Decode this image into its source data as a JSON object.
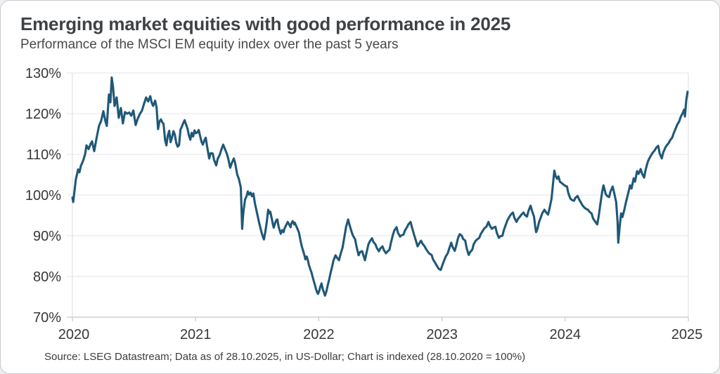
{
  "header": {
    "title": "Emerging market equities with good performance in 2025",
    "subtitle": "Performance of the MSCI EM equity index over the past 5 years"
  },
  "footer": {
    "source": "Source: LSEG Datastream; Data as of 28.10.2025, in US-Dollar; Chart is indexed (28.10.2020 = 100%)"
  },
  "chart_data": {
    "type": "line",
    "title": "Emerging market equities with good performance in 2025",
    "subtitle": "Performance of the MSCI EM equity index over the past 5 years",
    "series_name": "MSCI EM equity index (indexed, 28.10.2020 = 100%)",
    "unit": "%",
    "grid": "horizontal",
    "legend": "none",
    "line_color": "#1f5878",
    "xlim_years": [
      0,
      5
    ],
    "ylim": [
      70,
      130
    ],
    "x_ticks": [
      "2020",
      "2021",
      "2022",
      "2023",
      "2024",
      "2025"
    ],
    "y_tick_values": [
      130,
      120,
      110,
      100,
      90,
      80,
      70
    ],
    "y_tick_labels": [
      "130%",
      "120%",
      "110%",
      "100%",
      "90%",
      "80%",
      "70%"
    ],
    "points": [
      [
        0,
        99.4
      ],
      [
        0.006,
        98.3
      ],
      [
        0.028,
        103.9
      ],
      [
        0.046,
        106.3
      ],
      [
        0.057,
        105.6
      ],
      [
        0.068,
        107.1
      ],
      [
        0.085,
        108.3
      ],
      [
        0.103,
        110
      ],
      [
        0.114,
        112.2
      ],
      [
        0.131,
        111.3
      ],
      [
        0.148,
        112.6
      ],
      [
        0.159,
        113.2
      ],
      [
        0.177,
        110.8
      ],
      [
        0.194,
        113.7
      ],
      [
        0.216,
        117
      ],
      [
        0.233,
        118.2
      ],
      [
        0.251,
        120.6
      ],
      [
        0.268,
        118.1
      ],
      [
        0.279,
        117
      ],
      [
        0.296,
        124.7
      ],
      [
        0.308,
        122.8
      ],
      [
        0.319,
        128.9
      ],
      [
        0.33,
        126.5
      ],
      [
        0.342,
        121.9
      ],
      [
        0.359,
        124
      ],
      [
        0.376,
        119
      ],
      [
        0.393,
        121.4
      ],
      [
        0.41,
        117.6
      ],
      [
        0.427,
        120.4
      ],
      [
        0.444,
        120
      ],
      [
        0.461,
        120.3
      ],
      [
        0.478,
        119.5
      ],
      [
        0.495,
        120.8
      ],
      [
        0.513,
        117.2
      ],
      [
        0.53,
        118.8
      ],
      [
        0.547,
        119.9
      ],
      [
        0.564,
        120.7
      ],
      [
        0.581,
        122.4
      ],
      [
        0.598,
        124
      ],
      [
        0.615,
        123
      ],
      [
        0.632,
        124.3
      ],
      [
        0.644,
        122.7
      ],
      [
        0.655,
        121.9
      ],
      [
        0.672,
        123.2
      ],
      [
        0.683,
        121.5
      ],
      [
        0.695,
        116.2
      ],
      [
        0.706,
        118
      ],
      [
        0.718,
        118.6
      ],
      [
        0.729,
        117.9
      ],
      [
        0.74,
        117.5
      ],
      [
        0.752,
        113.5
      ],
      [
        0.763,
        112.2
      ],
      [
        0.774,
        114.6
      ],
      [
        0.786,
        115.8
      ],
      [
        0.797,
        113
      ],
      [
        0.809,
        114.2
      ],
      [
        0.82,
        115.7
      ],
      [
        0.831,
        114.9
      ],
      [
        0.843,
        112.8
      ],
      [
        0.854,
        111.9
      ],
      [
        0.866,
        112.3
      ],
      [
        0.877,
        116.1
      ],
      [
        0.888,
        116.8
      ],
      [
        0.9,
        117.7
      ],
      [
        0.911,
        118.4
      ],
      [
        0.923,
        117.3
      ],
      [
        0.934,
        116.4
      ],
      [
        0.945,
        114.7
      ],
      [
        0.957,
        113.6
      ],
      [
        0.968,
        115.3
      ],
      [
        0.98,
        114.4
      ],
      [
        0.991,
        115.9
      ],
      [
        1.002,
        115.2
      ],
      [
        1.014,
        115.4
      ],
      [
        1.025,
        116
      ],
      [
        1.036,
        114.6
      ],
      [
        1.048,
        113.1
      ],
      [
        1.059,
        112.4
      ],
      [
        1.071,
        113.4
      ],
      [
        1.082,
        114.1
      ],
      [
        1.093,
        112
      ],
      [
        1.11,
        109
      ],
      [
        1.122,
        110.3
      ],
      [
        1.139,
        110.2
      ],
      [
        1.15,
        108.6
      ],
      [
        1.167,
        107.3
      ],
      [
        1.179,
        108.9
      ],
      [
        1.196,
        109.9
      ],
      [
        1.207,
        111
      ],
      [
        1.224,
        112.4
      ],
      [
        1.236,
        111.5
      ],
      [
        1.253,
        110.2
      ],
      [
        1.264,
        109
      ],
      [
        1.281,
        106.7
      ],
      [
        1.293,
        107.8
      ],
      [
        1.31,
        109
      ],
      [
        1.321,
        107.9
      ],
      [
        1.338,
        105
      ],
      [
        1.35,
        104.1
      ],
      [
        1.361,
        102.7
      ],
      [
        1.367,
        101.8
      ],
      [
        1.372,
        97
      ],
      [
        1.378,
        91.7
      ],
      [
        1.384,
        94.5
      ],
      [
        1.389,
        96.2
      ],
      [
        1.401,
        98.9
      ],
      [
        1.412,
        99.6
      ],
      [
        1.424,
        100.9
      ],
      [
        1.435,
        100.1
      ],
      [
        1.447,
        100.6
      ],
      [
        1.458,
        99.7
      ],
      [
        1.469,
        100.4
      ],
      [
        1.481,
        98
      ],
      [
        1.492,
        96.5
      ],
      [
        1.503,
        95
      ],
      [
        1.515,
        93.3
      ],
      [
        1.526,
        91.9
      ],
      [
        1.538,
        90.5
      ],
      [
        1.549,
        89.5
      ],
      [
        1.555,
        89.1
      ],
      [
        1.566,
        91
      ],
      [
        1.577,
        93.2
      ],
      [
        1.589,
        96.4
      ],
      [
        1.6,
        95.5
      ],
      [
        1.606,
        95.9
      ],
      [
        1.617,
        94.4
      ],
      [
        1.629,
        92.6
      ],
      [
        1.634,
        92
      ],
      [
        1.646,
        93.2
      ],
      [
        1.657,
        93.9
      ],
      [
        1.663,
        94
      ],
      [
        1.674,
        92.2
      ],
      [
        1.686,
        91
      ],
      [
        1.691,
        90.5
      ],
      [
        1.703,
        91.4
      ],
      [
        1.714,
        90.9
      ],
      [
        1.72,
        91.6
      ],
      [
        1.731,
        92.4
      ],
      [
        1.743,
        93.1
      ],
      [
        1.748,
        93.4
      ],
      [
        1.76,
        92.7
      ],
      [
        1.771,
        92.1
      ],
      [
        1.777,
        93
      ],
      [
        1.788,
        93.6
      ],
      [
        1.8,
        92.8
      ],
      [
        1.805,
        93.2
      ],
      [
        1.817,
        92.4
      ],
      [
        1.828,
        91.6
      ],
      [
        1.839,
        90.8
      ],
      [
        1.851,
        88.9
      ],
      [
        1.862,
        87.4
      ],
      [
        1.874,
        86.2
      ],
      [
        1.885,
        85
      ],
      [
        1.891,
        84.2
      ],
      [
        1.902,
        84.9
      ],
      [
        1.914,
        83.7
      ],
      [
        1.919,
        82.9
      ],
      [
        1.931,
        81.8
      ],
      [
        1.942,
        80.9
      ],
      [
        1.948,
        80.1
      ],
      [
        1.959,
        78.9
      ],
      [
        1.97,
        77.8
      ],
      [
        1.976,
        77
      ],
      [
        1.988,
        76
      ],
      [
        1.993,
        75.7
      ],
      [
        2.005,
        76.6
      ],
      [
        2.01,
        77.3
      ],
      [
        2.022,
        78.3
      ],
      [
        2.033,
        76.8
      ],
      [
        2.045,
        75.8
      ],
      [
        2.05,
        75.3
      ],
      [
        2.062,
        76.4
      ],
      [
        2.073,
        77.9
      ],
      [
        2.084,
        79.2
      ],
      [
        2.096,
        80.9
      ],
      [
        2.107,
        82.2
      ],
      [
        2.119,
        83.9
      ],
      [
        2.136,
        85.2
      ],
      [
        2.147,
        84.6
      ],
      [
        2.164,
        84
      ],
      [
        2.176,
        85.4
      ],
      [
        2.193,
        87.1
      ],
      [
        2.204,
        89
      ],
      [
        2.221,
        92.1
      ],
      [
        2.238,
        94
      ],
      [
        2.25,
        92.6
      ],
      [
        2.267,
        90.9
      ],
      [
        2.278,
        90
      ],
      [
        2.295,
        89.1
      ],
      [
        2.306,
        87.4
      ],
      [
        2.323,
        85.2
      ],
      [
        2.335,
        86
      ],
      [
        2.352,
        86.2
      ],
      [
        2.363,
        85.1
      ],
      [
        2.375,
        84
      ],
      [
        2.386,
        85.6
      ],
      [
        2.403,
        87.9
      ],
      [
        2.414,
        88.6
      ],
      [
        2.432,
        89.4
      ],
      [
        2.443,
        88.5
      ],
      [
        2.46,
        87.9
      ],
      [
        2.471,
        87
      ],
      [
        2.488,
        86.2
      ],
      [
        2.5,
        86.9
      ],
      [
        2.517,
        87.4
      ],
      [
        2.528,
        86.5
      ],
      [
        2.545,
        85.7
      ],
      [
        2.557,
        86.1
      ],
      [
        2.574,
        86.6
      ],
      [
        2.585,
        88.2
      ],
      [
        2.602,
        90.3
      ],
      [
        2.613,
        91.3
      ],
      [
        2.631,
        92.1
      ],
      [
        2.642,
        90.8
      ],
      [
        2.659,
        89.8
      ],
      [
        2.67,
        90.1
      ],
      [
        2.688,
        90.3
      ],
      [
        2.699,
        91.3
      ],
      [
        2.716,
        92.1
      ],
      [
        2.727,
        92.8
      ],
      [
        2.745,
        93.4
      ],
      [
        2.756,
        92.1
      ],
      [
        2.773,
        90.3
      ],
      [
        2.784,
        89.2
      ],
      [
        2.802,
        87.4
      ],
      [
        2.813,
        88
      ],
      [
        2.83,
        88.8
      ],
      [
        2.841,
        88.1
      ],
      [
        2.859,
        87.4
      ],
      [
        2.87,
        86.8
      ],
      [
        2.887,
        86
      ],
      [
        2.898,
        85.6
      ],
      [
        2.916,
        85.3
      ],
      [
        2.927,
        84.2
      ],
      [
        2.944,
        83.4
      ],
      [
        2.955,
        82.8
      ],
      [
        2.973,
        81.9
      ],
      [
        2.99,
        81.6
      ],
      [
        3.001,
        82.6
      ],
      [
        3.007,
        83.1
      ],
      [
        3.018,
        84
      ],
      [
        3.03,
        84.9
      ],
      [
        3.047,
        85.7
      ],
      [
        3.058,
        86.8
      ],
      [
        3.075,
        88.3
      ],
      [
        3.087,
        87.2
      ],
      [
        3.104,
        86.3
      ],
      [
        3.115,
        87.5
      ],
      [
        3.132,
        89.6
      ],
      [
        3.144,
        90.4
      ],
      [
        3.161,
        90
      ],
      [
        3.172,
        89.2
      ],
      [
        3.189,
        88.8
      ],
      [
        3.2,
        87
      ],
      [
        3.217,
        85.3
      ],
      [
        3.229,
        86
      ],
      [
        3.246,
        86.6
      ],
      [
        3.257,
        87.9
      ],
      [
        3.274,
        88.8
      ],
      [
        3.286,
        89.1
      ],
      [
        3.303,
        89.5
      ],
      [
        3.314,
        90.4
      ],
      [
        3.331,
        91.2
      ],
      [
        3.343,
        91.8
      ],
      [
        3.36,
        92.2
      ],
      [
        3.377,
        93.4
      ],
      [
        3.388,
        92.5
      ],
      [
        3.405,
        91.7
      ],
      [
        3.417,
        92
      ],
      [
        3.434,
        92.2
      ],
      [
        3.445,
        90.7
      ],
      [
        3.462,
        89.5
      ],
      [
        3.474,
        89.9
      ],
      [
        3.491,
        90
      ],
      [
        3.502,
        91.4
      ],
      [
        3.519,
        92.8
      ],
      [
        3.531,
        93.8
      ],
      [
        3.548,
        94.7
      ],
      [
        3.559,
        95.2
      ],
      [
        3.576,
        95.7
      ],
      [
        3.588,
        94.4
      ],
      [
        3.605,
        93.4
      ],
      [
        3.616,
        94.1
      ],
      [
        3.633,
        94.7
      ],
      [
        3.645,
        95.2
      ],
      [
        3.662,
        95.7
      ],
      [
        3.673,
        95.1
      ],
      [
        3.69,
        94.7
      ],
      [
        3.702,
        96.1
      ],
      [
        3.719,
        97.4
      ],
      [
        3.73,
        96.2
      ],
      [
        3.747,
        94.7
      ],
      [
        3.758,
        92
      ],
      [
        3.764,
        90.9
      ],
      [
        3.775,
        91.7
      ],
      [
        3.787,
        93.3
      ],
      [
        3.804,
        94.7
      ],
      [
        3.815,
        95.6
      ],
      [
        3.832,
        96.4
      ],
      [
        3.844,
        95.8
      ],
      [
        3.861,
        95.2
      ],
      [
        3.872,
        96.6
      ],
      [
        3.889,
        99.1
      ],
      [
        3.901,
        102.8
      ],
      [
        3.912,
        106
      ],
      [
        3.923,
        104.6
      ],
      [
        3.935,
        104
      ],
      [
        3.946,
        104.6
      ],
      [
        3.957,
        103.3
      ],
      [
        3.974,
        102.9
      ],
      [
        3.986,
        102.6
      ],
      [
        4.003,
        102.2
      ],
      [
        4.015,
        102.1
      ],
      [
        4.026,
        100.4
      ],
      [
        4.043,
        99.1
      ],
      [
        4.055,
        98.8
      ],
      [
        4.072,
        98.6
      ],
      [
        4.083,
        99.3
      ],
      [
        4.1,
        99.8
      ],
      [
        4.112,
        99
      ],
      [
        4.129,
        98.1
      ],
      [
        4.14,
        97.5
      ],
      [
        4.157,
        96.9
      ],
      [
        4.169,
        96.6
      ],
      [
        4.186,
        96.4
      ],
      [
        4.197,
        95.9
      ],
      [
        4.214,
        95.5
      ],
      [
        4.226,
        94.3
      ],
      [
        4.243,
        93.5
      ],
      [
        4.26,
        92.8
      ],
      [
        4.271,
        94.6
      ],
      [
        4.283,
        97.2
      ],
      [
        4.3,
        100.8
      ],
      [
        4.311,
        102.4
      ],
      [
        4.323,
        101
      ],
      [
        4.328,
        100.3
      ],
      [
        4.34,
        99.8
      ],
      [
        4.357,
        99.5
      ],
      [
        4.368,
        100.9
      ],
      [
        4.385,
        102.1
      ],
      [
        4.397,
        100.6
      ],
      [
        4.414,
        98.3
      ],
      [
        4.425,
        93.5
      ],
      [
        4.431,
        88.3
      ],
      [
        4.442,
        92
      ],
      [
        4.454,
        95.5
      ],
      [
        4.465,
        94.6
      ],
      [
        4.482,
        96.6
      ],
      [
        4.493,
        98.2
      ],
      [
        4.51,
        100.3
      ],
      [
        4.527,
        102.4
      ],
      [
        4.539,
        101.6
      ],
      [
        4.556,
        104.1
      ],
      [
        4.567,
        103.3
      ],
      [
        4.584,
        105.9
      ],
      [
        4.596,
        105.2
      ],
      [
        4.613,
        106.4
      ],
      [
        4.624,
        105.3
      ],
      [
        4.641,
        104.3
      ],
      [
        4.653,
        106.2
      ],
      [
        4.67,
        108.1
      ],
      [
        4.681,
        108.9
      ],
      [
        4.698,
        109.8
      ],
      [
        4.71,
        110.4
      ],
      [
        4.727,
        111
      ],
      [
        4.738,
        111.6
      ],
      [
        4.755,
        112.1
      ],
      [
        4.767,
        110.2
      ],
      [
        4.784,
        109
      ],
      [
        4.795,
        110.4
      ],
      [
        4.812,
        111.6
      ],
      [
        4.824,
        112.2
      ],
      [
        4.841,
        112.8
      ],
      [
        4.852,
        113.5
      ],
      [
        4.869,
        114.1
      ],
      [
        4.881,
        115.2
      ],
      [
        4.898,
        116.4
      ],
      [
        4.909,
        117.3
      ],
      [
        4.926,
        118.1
      ],
      [
        4.938,
        119.2
      ],
      [
        4.955,
        120.2
      ],
      [
        4.966,
        121
      ],
      [
        4.972,
        119.3
      ],
      [
        4.983,
        123.3
      ],
      [
        4.994,
        125.4
      ]
    ]
  }
}
